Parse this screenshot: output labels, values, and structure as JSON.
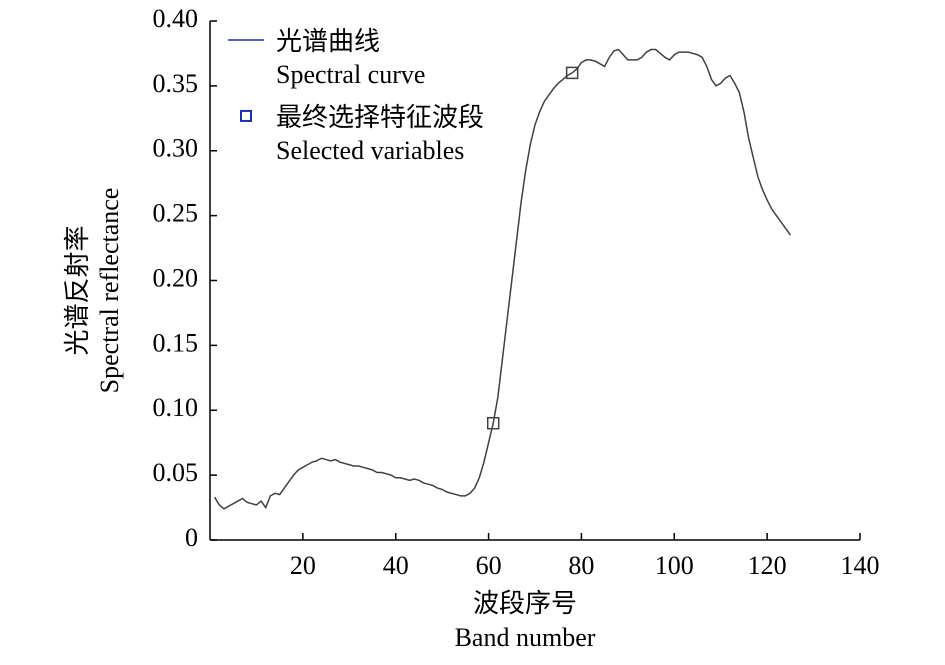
{
  "chart_data": {
    "type": "line",
    "xlabel": [
      "波段序号",
      "Band number"
    ],
    "ylabel": [
      "光谱反射率",
      "Spectral reflectance"
    ],
    "xlim": [
      0,
      140
    ],
    "xticks": [
      20,
      40,
      60,
      80,
      100,
      120,
      140
    ],
    "ylim": [
      0,
      0.4
    ],
    "yticks": [
      0,
      0.05,
      {
        "value": 0.1,
        "label": "0.10"
      },
      0.15,
      {
        "value": 0.2,
        "label": "0.20"
      },
      0.25,
      {
        "value": 0.3,
        "label": "0.30"
      },
      0.35,
      {
        "value": 0.4,
        "label": "0.40"
      }
    ],
    "legend": "upper left",
    "series": [
      {
        "name": [
          "光谱曲线",
          "Spectral curve"
        ],
        "color": "#404040",
        "legend_color": "#1c2fb0",
        "x": [
          1,
          2,
          3,
          4,
          5,
          6,
          7,
          8,
          9,
          10,
          11,
          12,
          13,
          14,
          15,
          16,
          17,
          18,
          19,
          20,
          21,
          22,
          23,
          24,
          25,
          26,
          27,
          28,
          29,
          30,
          31,
          32,
          33,
          34,
          35,
          36,
          37,
          38,
          39,
          40,
          41,
          42,
          43,
          44,
          45,
          46,
          47,
          48,
          49,
          50,
          51,
          52,
          53,
          54,
          55,
          56,
          57,
          58,
          59,
          60,
          61,
          62,
          63,
          64,
          65,
          66,
          67,
          68,
          69,
          70,
          71,
          72,
          73,
          74,
          75,
          76,
          77,
          78,
          79,
          80,
          81,
          82,
          83,
          84,
          85,
          86,
          87,
          88,
          89,
          90,
          91,
          92,
          93,
          94,
          95,
          96,
          97,
          98,
          99,
          100,
          101,
          102,
          103,
          104,
          105,
          106,
          107,
          108,
          109,
          110,
          111,
          112,
          113,
          114,
          115,
          116,
          117,
          118,
          119,
          120,
          121,
          122,
          123,
          124,
          125
        ],
        "values": [
          0.033,
          0.027,
          0.024,
          0.026,
          0.028,
          0.03,
          0.032,
          0.029,
          0.028,
          0.027,
          0.03,
          0.025,
          0.034,
          0.036,
          0.035,
          0.04,
          0.045,
          0.05,
          0.054,
          0.056,
          0.058,
          0.06,
          0.061,
          0.063,
          0.062,
          0.061,
          0.062,
          0.06,
          0.059,
          0.058,
          0.057,
          0.057,
          0.056,
          0.055,
          0.054,
          0.052,
          0.052,
          0.051,
          0.05,
          0.048,
          0.048,
          0.047,
          0.046,
          0.047,
          0.046,
          0.044,
          0.043,
          0.042,
          0.04,
          0.039,
          0.037,
          0.036,
          0.035,
          0.034,
          0.034,
          0.036,
          0.04,
          0.048,
          0.06,
          0.075,
          0.09,
          0.11,
          0.14,
          0.17,
          0.2,
          0.23,
          0.26,
          0.285,
          0.305,
          0.32,
          0.33,
          0.338,
          0.343,
          0.348,
          0.352,
          0.355,
          0.358,
          0.36,
          0.363,
          0.368,
          0.37,
          0.37,
          0.369,
          0.367,
          0.365,
          0.372,
          0.377,
          0.378,
          0.374,
          0.37,
          0.37,
          0.37,
          0.372,
          0.376,
          0.378,
          0.378,
          0.375,
          0.372,
          0.37,
          0.374,
          0.376,
          0.376,
          0.376,
          0.375,
          0.374,
          0.372,
          0.365,
          0.355,
          0.35,
          0.352,
          0.356,
          0.358,
          0.352,
          0.345,
          0.33,
          0.31,
          0.295,
          0.28,
          0.27,
          0.262,
          0.255,
          0.25,
          0.245,
          0.24,
          0.235
        ]
      },
      {
        "name": [
          "最终选择特征波段",
          "Selected variables"
        ],
        "type": "scatter",
        "color": "#404040",
        "legend_color": "#1c2fb0",
        "x": [
          61,
          78
        ],
        "values": [
          0.09,
          0.36
        ]
      }
    ]
  }
}
